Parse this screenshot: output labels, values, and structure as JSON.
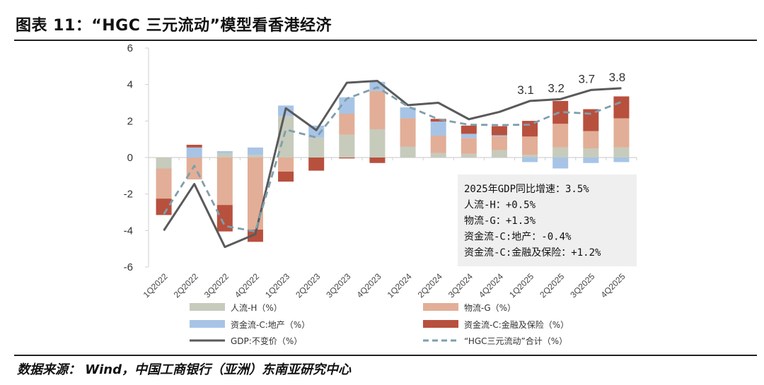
{
  "title": "图表 11：“HGC 三元流动”模型看香港经济",
  "source": "数据来源： Wind，中国工商银行（亚洲）东南亚研究中心",
  "chart_data": {
    "type": "bar",
    "stacked": true,
    "categories": [
      "1Q2022",
      "2Q2022",
      "3Q2022",
      "4Q2022",
      "1Q2023",
      "2Q2023",
      "3Q2023",
      "4Q2023",
      "1Q2024",
      "2Q2024",
      "3Q2024",
      "4Q2024",
      "1Q2025",
      "2Q2025",
      "3Q2025",
      "4Q2025"
    ],
    "ylim": [
      -6,
      6
    ],
    "yticks": [
      6,
      4,
      2,
      0,
      -2,
      -4,
      -6
    ],
    "grid": false,
    "legend_position": "bottom",
    "series": [
      {
        "name": "人流-H（%）",
        "kind": "bar",
        "color": "#c6cbbc",
        "values": [
          -0.6,
          0,
          0.25,
          0.15,
          2.27,
          1.1,
          1.25,
          1.55,
          0.6,
          0.25,
          0.2,
          0.4,
          0.15,
          0.55,
          0.5,
          0.55
        ]
      },
      {
        "name": "物流-G（%）",
        "kind": "bar",
        "color": "#e2ae97",
        "values": [
          -1.65,
          -1.2,
          -2.6,
          -3.95,
          -0.77,
          0,
          1.15,
          2.1,
          1.55,
          0.95,
          0.87,
          0.77,
          1.0,
          1.3,
          0.95,
          1.6
        ]
      },
      {
        "name": "资金流-C:地产（%）",
        "kind": "bar",
        "color": "#a7c4e6",
        "values": [
          0,
          0.55,
          0.1,
          0.4,
          0.58,
          0.65,
          0.9,
          0.5,
          0.6,
          0.77,
          0.23,
          0.05,
          -0.25,
          -0.6,
          -0.3,
          -0.25
        ]
      },
      {
        "name": "资金流-C:金融及保险（%）",
        "kind": "bar",
        "color": "#b8503e",
        "values": [
          -0.9,
          0.15,
          -1.45,
          -0.67,
          -0.55,
          -0.72,
          -0.05,
          -0.3,
          0.0,
          0.15,
          0.45,
          0.5,
          0.86,
          1.25,
          1.2,
          1.2
        ]
      },
      {
        "name": "GDP:不变价（%）",
        "kind": "line",
        "color": "#5a5a5a",
        "values": [
          -4.0,
          -1.45,
          -4.9,
          -4.2,
          2.7,
          1.5,
          4.1,
          4.2,
          2.87,
          3.0,
          2.1,
          2.5,
          3.1,
          3.2,
          3.7,
          3.8
        ]
      },
      {
        "name": "“HGC三元流动”合计（%）",
        "kind": "dashed-line",
        "color": "#7f9fac",
        "values": [
          -3.1,
          -0.45,
          -3.75,
          -4.05,
          1.53,
          1.1,
          3.23,
          3.85,
          2.8,
          2.1,
          1.8,
          1.78,
          1.8,
          2.5,
          2.4,
          3.05
        ]
      }
    ],
    "data_labels": [
      {
        "category": "1Q2025",
        "text": "3.1"
      },
      {
        "category": "2Q2025",
        "text": "3.2"
      },
      {
        "category": "3Q2025",
        "text": "3.7"
      },
      {
        "category": "4Q2025",
        "text": "3.8"
      }
    ],
    "annotation": [
      "2025年GDP同比增速：3.5%",
      "人流-H：+0.5%",
      "物流-G：+1.3%",
      "资金流-C:地产：-0.4%",
      "资金流-C:金融及保险：+1.2%"
    ]
  }
}
